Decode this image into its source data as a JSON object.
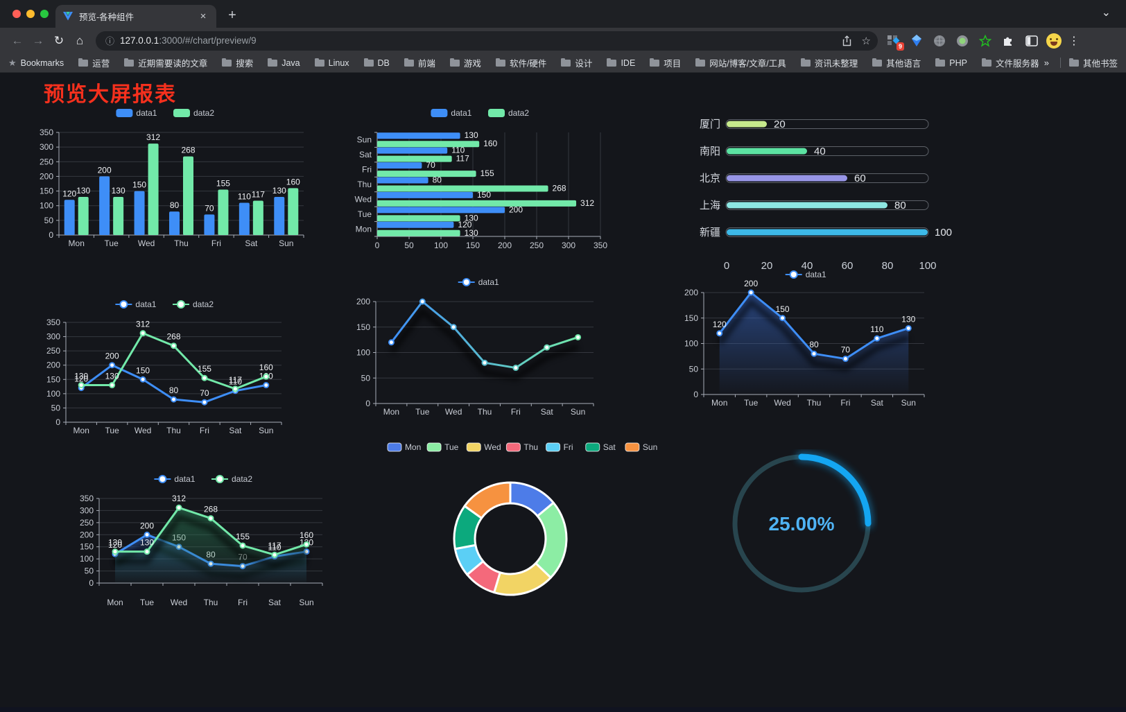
{
  "browser": {
    "tab_title": "预览-各种组件",
    "url": {
      "host": "127.0.0.1",
      "rest": ":3000/#/chart/preview/9"
    },
    "bookmarks_label": "Bookmarks",
    "bookmarks": [
      "运营",
      "近期需要读的文章",
      "搜索",
      "Java",
      "Linux",
      "DB",
      "前端",
      "游戏",
      "软件/硬件",
      "设计",
      "IDE",
      "项目",
      "网站/博客/文章/工具",
      "资讯未整理",
      "其他语言",
      "PHP",
      "文件服务器"
    ],
    "other_bookmarks": "其他书签",
    "extension_badge": "9"
  },
  "icons": {
    "back": "←",
    "forward": "→",
    "reload": "↻",
    "home": "⌂",
    "info": "ⓘ",
    "star": "☆",
    "bookmark_star": "★",
    "kebab": "⋮",
    "plus": "+",
    "close": "×",
    "chevron_down": "⌄",
    "overflow": "»"
  },
  "page": {
    "title": "预览大屏报表",
    "title_color": "#f5301d",
    "background": "#14161b"
  },
  "chart_data": [
    {
      "id": "bar-grouped",
      "type": "bar",
      "categories": [
        "Mon",
        "Tue",
        "Wed",
        "Thu",
        "Fri",
        "Sat",
        "Sun"
      ],
      "series": [
        {
          "name": "data1",
          "color": "#3E8EF7",
          "values": [
            120,
            200,
            150,
            80,
            70,
            110,
            130
          ]
        },
        {
          "name": "data2",
          "color": "#72E9A9",
          "values": [
            130,
            130,
            312,
            268,
            155,
            117,
            160
          ]
        }
      ],
      "ylim": [
        0,
        350
      ],
      "ytick": 50,
      "legend_position": "top",
      "value_labels": true,
      "grid": true
    },
    {
      "id": "bar-horizontal",
      "type": "hbar",
      "categories": [
        "Mon",
        "Tue",
        "Wed",
        "Thu",
        "Fri",
        "Sat",
        "Sun"
      ],
      "series": [
        {
          "name": "data1",
          "color": "#3E8EF7",
          "values": [
            120,
            200,
            150,
            80,
            70,
            110,
            130
          ]
        },
        {
          "name": "data2",
          "color": "#72E9A9",
          "values": [
            130,
            130,
            312,
            268,
            155,
            117,
            160
          ]
        }
      ],
      "xlim": [
        0,
        350
      ],
      "xtick": 50,
      "legend_position": "top",
      "value_labels": true,
      "grid": true
    },
    {
      "id": "progress-bars",
      "type": "progress",
      "xlim": [
        0,
        100
      ],
      "axis_ticks": [
        0,
        20,
        40,
        60,
        80,
        100
      ],
      "rows": [
        {
          "label": "厦门",
          "value": 20,
          "color": "#C6E98C"
        },
        {
          "label": "南阳",
          "value": 40,
          "color": "#5CE2A2"
        },
        {
          "label": "北京",
          "value": 60,
          "color": "#9795E6"
        },
        {
          "label": "上海",
          "value": 80,
          "color": "#8DE6E2"
        },
        {
          "label": "新疆",
          "value": 100,
          "color": "#3DB9E8"
        }
      ]
    },
    {
      "id": "line-two-series",
      "type": "line",
      "categories": [
        "Mon",
        "Tue",
        "Wed",
        "Thu",
        "Fri",
        "Sat",
        "Sun"
      ],
      "series": [
        {
          "name": "data1",
          "color": "#3E8EF7",
          "values": [
            120,
            200,
            150,
            80,
            70,
            110,
            130
          ]
        },
        {
          "name": "data2",
          "color": "#72E9A9",
          "values": [
            130,
            130,
            312,
            268,
            155,
            117,
            160
          ]
        }
      ],
      "ylim": [
        0,
        350
      ],
      "ytick": 50,
      "legend_position": "top",
      "value_labels": true,
      "grid": true
    },
    {
      "id": "line-gradient",
      "type": "line",
      "categories": [
        "Mon",
        "Tue",
        "Wed",
        "Thu",
        "Fri",
        "Sat",
        "Sun"
      ],
      "series": [
        {
          "name": "data1",
          "color": "#3E8EF7",
          "color_end": "#72E9A9",
          "values": [
            120,
            200,
            150,
            80,
            70,
            110,
            130
          ]
        }
      ],
      "ylim": [
        0,
        200
      ],
      "ytick": 50,
      "legend_position": "top",
      "value_labels": false,
      "shadow": true,
      "grid": true
    },
    {
      "id": "line-area",
      "type": "area",
      "categories": [
        "Mon",
        "Tue",
        "Wed",
        "Thu",
        "Fri",
        "Sat",
        "Sun"
      ],
      "series": [
        {
          "name": "data1",
          "color": "#3E8EF7",
          "fill_from": "rgba(54,100,190,0.60)",
          "fill_to": "rgba(54,100,190,0.02)",
          "values": [
            120,
            200,
            150,
            80,
            70,
            110,
            130
          ]
        }
      ],
      "ylim": [
        0,
        200
      ],
      "ytick": 50,
      "legend_position": "top",
      "value_labels": true,
      "shadow": true,
      "grid": true
    },
    {
      "id": "area-two-series",
      "type": "area",
      "categories": [
        "Mon",
        "Tue",
        "Wed",
        "Thu",
        "Fri",
        "Sat",
        "Sun"
      ],
      "series": [
        {
          "name": "data1",
          "color": "#3E8EF7",
          "fill_from": "rgba(47,92,176,0.55)",
          "fill_to": "rgba(47,92,176,0.02)",
          "values": [
            120,
            200,
            150,
            80,
            70,
            110,
            130
          ]
        },
        {
          "name": "data2",
          "color": "#72E9A9",
          "fill_from": "rgba(42,122,84,0.60)",
          "fill_to": "rgba(42,122,84,0.03)",
          "values": [
            130,
            130,
            312,
            268,
            155,
            117,
            160
          ]
        }
      ],
      "ylim": [
        0,
        350
      ],
      "ytick": 50,
      "legend_position": "top",
      "value_labels": true,
      "shadow": true,
      "grid": true
    },
    {
      "id": "donut",
      "type": "pie",
      "categories": [
        "Mon",
        "Tue",
        "Wed",
        "Thu",
        "Fri",
        "Sat",
        "Sun"
      ],
      "values": [
        120,
        200,
        150,
        80,
        70,
        110,
        130
      ],
      "colors": [
        "#4D7CE8",
        "#8CEDA4",
        "#F2D464",
        "#F4697B",
        "#5BCFF5",
        "#0CA97D",
        "#F69240"
      ],
      "legend_position": "top"
    },
    {
      "id": "gauge",
      "type": "gauge",
      "value": 25,
      "display": "25.00%",
      "progress_color": "#14A6F2",
      "track_color": "#28454E",
      "text_color": "#4FB3F4"
    }
  ]
}
